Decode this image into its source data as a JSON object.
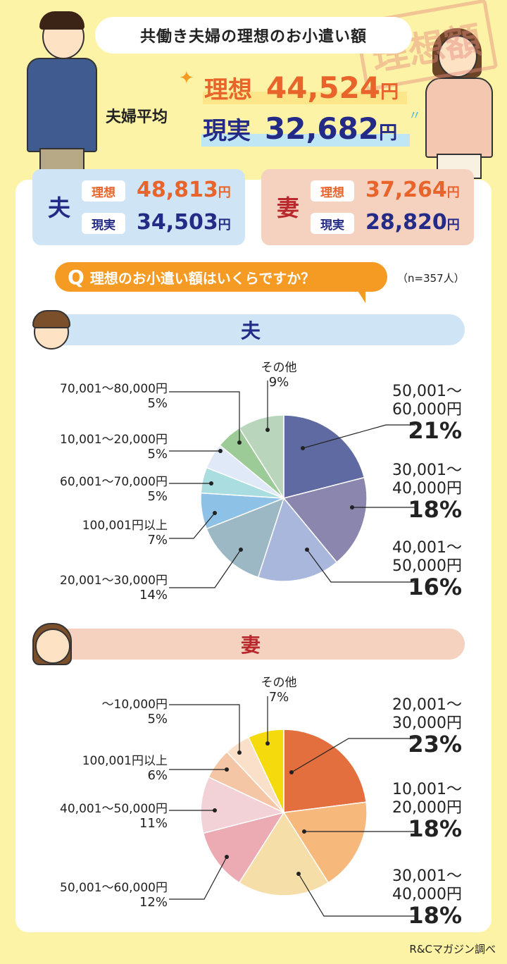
{
  "title": "共働き夫婦の理想のお小遣い額",
  "stamp": "理想額",
  "average": {
    "label": "夫婦平均",
    "ideal_label": "理想",
    "ideal_value": "44,524",
    "real_label": "現実",
    "real_value": "32,682",
    "unit": "円"
  },
  "husband_card": {
    "label": "夫",
    "ideal_label": "理想",
    "ideal_value": "48,813",
    "real_label": "現実",
    "real_value": "34,503",
    "unit": "円"
  },
  "wife_card": {
    "label": "妻",
    "ideal_label": "理想",
    "ideal_value": "37,264",
    "real_label": "現実",
    "real_value": "28,820",
    "unit": "円"
  },
  "question": {
    "mark": "Q",
    "text": "理想のお小遣い額はいくらですか？",
    "n": "（n=357人）"
  },
  "sections": {
    "husband": "夫",
    "wife": "妻"
  },
  "credit": "R&Cマガジン調べ",
  "colors": {
    "background": "#fdf3a6",
    "orange": "#e8642b",
    "navy": "#232b86",
    "husband_band": "#cfe5f6",
    "wife_band": "#f5d2bf"
  },
  "chart_data": [
    {
      "type": "pie",
      "title": "夫",
      "categories": [
        "50,001～60,000円",
        "30,001～40,000円",
        "40,001～50,000円",
        "20,001～30,000円",
        "100,001円以上",
        "60,001～70,000円",
        "10,001～20,000円",
        "70,001～80,000円",
        "その他"
      ],
      "values": [
        21,
        18,
        16,
        14,
        7,
        5,
        5,
        5,
        9
      ],
      "labels": [
        {
          "range": "50,001～\n60,000円",
          "pct": "21%"
        },
        {
          "range": "30,001～\n40,000円",
          "pct": "18%"
        },
        {
          "range": "40,001～\n50,000円",
          "pct": "16%"
        },
        {
          "range": "20,001～30,000円",
          "pct": "14%"
        },
        {
          "range": "100,001円以上",
          "pct": "7%"
        },
        {
          "range": "60,001～70,000円",
          "pct": "5%"
        },
        {
          "range": "10,001～20,000円",
          "pct": "5%"
        },
        {
          "range": "70,001～80,000円",
          "pct": "5%"
        },
        {
          "range": "その他",
          "pct": "9%"
        }
      ],
      "colors": [
        "#5f6aa3",
        "#8a86ae",
        "#aab7dd",
        "#9bb8c4",
        "#8ec1e6",
        "#a9dde0",
        "#dfe9f7",
        "#9ccb98",
        "#b9d6bd"
      ]
    },
    {
      "type": "pie",
      "title": "妻",
      "categories": [
        "20,001～30,000円",
        "10,001～20,000円",
        "30,001～40,000円",
        "50,001～60,000円",
        "40,001～50,000円",
        "100,001円以上",
        "～10,000円",
        "その他"
      ],
      "values": [
        23,
        18,
        18,
        12,
        11,
        6,
        5,
        7
      ],
      "labels": [
        {
          "range": "20,001～\n30,000円",
          "pct": "23%"
        },
        {
          "range": "10,001～\n20,000円",
          "pct": "18%"
        },
        {
          "range": "30,001～\n40,000円",
          "pct": "18%"
        },
        {
          "range": "50,001～60,000円",
          "pct": "12%"
        },
        {
          "range": "40,001～50,000円",
          "pct": "11%"
        },
        {
          "range": "100,001円以上",
          "pct": "6%"
        },
        {
          "range": "～10,000円",
          "pct": "5%"
        },
        {
          "range": "その他",
          "pct": "7%"
        }
      ],
      "colors": [
        "#e36e3e",
        "#f7b87c",
        "#f6dea9",
        "#ecaab3",
        "#f2d2d6",
        "#f4c6a5",
        "#fbe0c9",
        "#f5db0e"
      ]
    }
  ]
}
